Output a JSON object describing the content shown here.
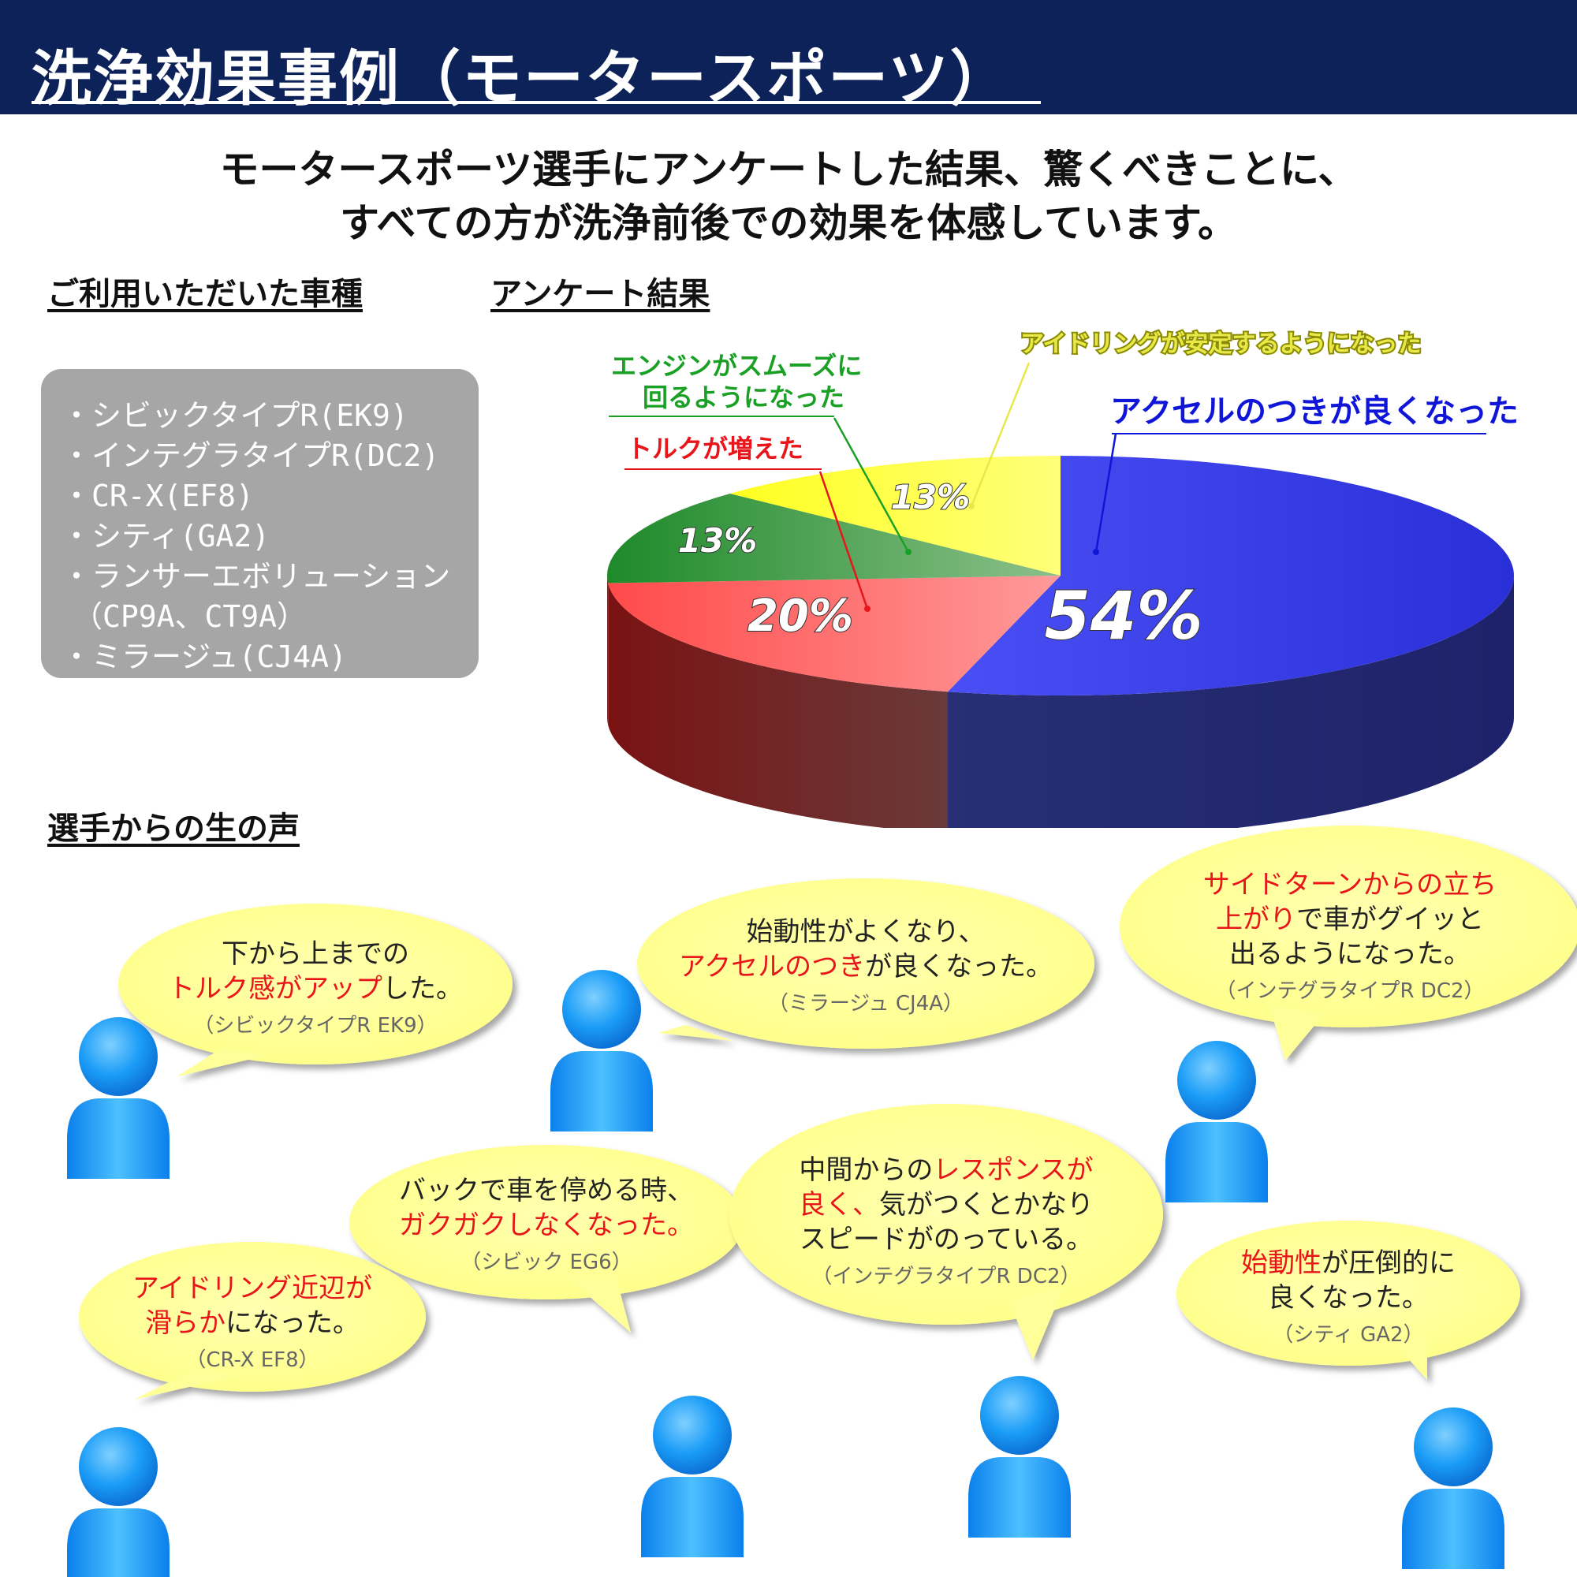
{
  "header": {
    "title": "洗浄効果事例（モータースポーツ）"
  },
  "lead": {
    "line1": "モータースポーツ選手にアンケートした結果、驚くべきことに、",
    "line2": "すべての方が洗浄前後での効果を体感しています。"
  },
  "sections": {
    "vehicles": "ご利用いただいた車種",
    "survey": "アンケート結果",
    "voices": "選手からの生の声"
  },
  "vehicles": [
    "・シビックタイプR(EK9)",
    "・インテグラタイプR(DC2)",
    "・CR-X(EF8)",
    "・シティ(GA2)",
    "・ランサーエボリューション",
    "（CP9A、CT9A）",
    "・ミラージュ(CJ4A)"
  ],
  "chart_data": {
    "type": "pie",
    "style": "3d",
    "slices": [
      {
        "label": "アクセルのつきが良くなった",
        "value": 54,
        "value_label": "54%",
        "color": "#3a3fee"
      },
      {
        "label": "トルクが増えた",
        "value": 20,
        "value_label": "20%",
        "color": "#ff5a5a"
      },
      {
        "label": "エンジンがスムーズに回るようになった",
        "value": 13,
        "value_label": "13%",
        "color": "#2a9a3a"
      },
      {
        "label": "アイドリングが安定するようになった",
        "value": 13,
        "value_label": "13%",
        "color": "#ffff3a"
      }
    ],
    "label_lines": {
      "engine": [
        "エンジンがスムーズに",
        "回るようになった"
      ]
    },
    "label_colors": {
      "accel": "#1016d8",
      "torque": "#e8151b",
      "engine": "#1aa024",
      "idle": "#e8e84a"
    }
  },
  "colors": {
    "header_bg": "#0d2259",
    "bubble_fill": "#ffff99",
    "person_fill": "#0a8ef5",
    "emphasis": "#e8151b"
  },
  "voices": [
    {
      "parts": [
        [
          "下から上までの",
          ""
        ],
        [
          "\n",
          ""
        ],
        [
          "トルク感がアップ",
          "red"
        ],
        [
          "した。",
          ""
        ]
      ],
      "car": "（シビックタイプR EK9）"
    },
    {
      "parts": [
        [
          "始動性がよくなり、",
          ""
        ],
        [
          "\n",
          ""
        ],
        [
          "アクセルのつき",
          "red"
        ],
        [
          "が良くなった。",
          ""
        ]
      ],
      "car": "（ミラージュ CJ4A）"
    },
    {
      "parts": [
        [
          "サイドターンからの立ち",
          "red"
        ],
        [
          "\n",
          ""
        ],
        [
          "上がり",
          "red"
        ],
        [
          "で車がグイッと",
          ""
        ],
        [
          "\n",
          ""
        ],
        [
          "出るようになった。",
          ""
        ]
      ],
      "car": "（インテグラタイプR DC2）"
    },
    {
      "parts": [
        [
          "バックで車を停める時、",
          ""
        ],
        [
          "\n",
          ""
        ],
        [
          "ガクガクしなくなった。",
          "red"
        ]
      ],
      "car": "（シビック EG6）"
    },
    {
      "parts": [
        [
          "中間からの",
          ""
        ],
        [
          "レスポンスが",
          "red"
        ],
        [
          "\n",
          ""
        ],
        [
          "良く、",
          "red"
        ],
        [
          "気がつくとかなり",
          ""
        ],
        [
          "\n",
          ""
        ],
        [
          "スピードがのっている。",
          ""
        ]
      ],
      "car": "（インテグラタイプR DC2）"
    },
    {
      "parts": [
        [
          "アイドリング近辺が",
          "red"
        ],
        [
          "\n",
          ""
        ],
        [
          "滑らか",
          "red"
        ],
        [
          "になった。",
          ""
        ]
      ],
      "car": "（CR-X EF8）"
    },
    {
      "parts": [
        [
          "始動性",
          "red"
        ],
        [
          "が圧倒的に",
          ""
        ],
        [
          "\n",
          ""
        ],
        [
          "良くなった。",
          ""
        ]
      ],
      "car": "（シティ GA2）"
    }
  ],
  "icons": {
    "person": "person-icon",
    "bubble": "speech-bubble"
  }
}
